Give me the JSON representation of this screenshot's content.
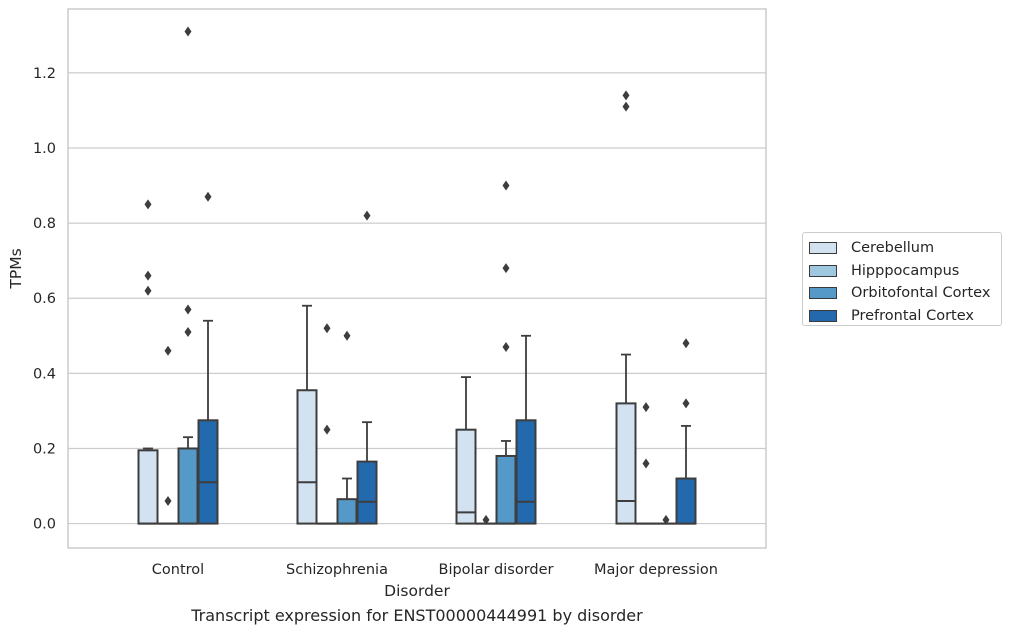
{
  "chart_data": {
    "type": "boxplot",
    "title": "",
    "caption": "Transcript expression for ENST00000444991 by disorder",
    "xlabel": "Disorder",
    "ylabel": "TPMs",
    "ylim": [
      -0.065,
      1.37
    ],
    "yticks": [
      "0.0",
      "0.2",
      "0.4",
      "0.6",
      "0.8",
      "1.0",
      "1.2"
    ],
    "grid": "horizontal",
    "legend_position": "right",
    "categories": [
      "Control",
      "Schizophrenia",
      "Bipolar disorder",
      "Major depression"
    ],
    "series": [
      {
        "name": "Cerebellum",
        "color": "#d3e2f1",
        "boxes": [
          {
            "q1": 0.0,
            "median": 0.0,
            "q3": 0.195,
            "whislo": 0.0,
            "whishi": 0.2,
            "fliers": [
              0.85,
              0.66,
              0.62
            ]
          },
          {
            "q1": 0.0,
            "median": 0.11,
            "q3": 0.355,
            "whislo": 0.0,
            "whishi": 0.58,
            "fliers": []
          },
          {
            "q1": 0.0,
            "median": 0.03,
            "q3": 0.25,
            "whislo": 0.0,
            "whishi": 0.39,
            "fliers": []
          },
          {
            "q1": 0.0,
            "median": 0.06,
            "q3": 0.32,
            "whislo": 0.0,
            "whishi": 0.45,
            "fliers": [
              1.14,
              1.11
            ]
          }
        ]
      },
      {
        "name": "Hipppocampus",
        "color": "#9ec8e0",
        "boxes": [
          {
            "q1": 0.0,
            "median": 0.0,
            "q3": 0.0,
            "whislo": 0.0,
            "whishi": 0.0,
            "fliers": [
              0.46,
              0.06
            ]
          },
          {
            "q1": 0.0,
            "median": 0.0,
            "q3": 0.0,
            "whislo": 0.0,
            "whishi": 0.0,
            "fliers": [
              0.52,
              0.25
            ]
          },
          {
            "q1": 0.0,
            "median": 0.0,
            "q3": 0.0,
            "whislo": 0.0,
            "whishi": 0.0,
            "fliers": [
              0.01
            ]
          },
          {
            "q1": 0.0,
            "median": 0.0,
            "q3": 0.0,
            "whislo": 0.0,
            "whishi": 0.0,
            "fliers": [
              0.31,
              0.16
            ]
          }
        ]
      },
      {
        "name": "Orbitofontal Cortex",
        "color": "#5499c7",
        "boxes": [
          {
            "q1": 0.0,
            "median": 0.0,
            "q3": 0.2,
            "whislo": 0.0,
            "whishi": 0.23,
            "fliers": [
              1.31,
              0.57,
              0.51
            ]
          },
          {
            "q1": 0.0,
            "median": 0.0,
            "q3": 0.065,
            "whislo": 0.0,
            "whishi": 0.12,
            "fliers": [
              0.5
            ]
          },
          {
            "q1": 0.0,
            "median": 0.0,
            "q3": 0.18,
            "whislo": 0.0,
            "whishi": 0.22,
            "fliers": [
              0.9,
              0.68,
              0.47
            ]
          },
          {
            "q1": 0.0,
            "median": 0.0,
            "q3": 0.0,
            "whislo": 0.0,
            "whishi": 0.0,
            "fliers": [
              0.01
            ]
          }
        ]
      },
      {
        "name": "Prefrontal Cortex",
        "color": "#2369ad",
        "boxes": [
          {
            "q1": 0.0,
            "median": 0.11,
            "q3": 0.275,
            "whislo": 0.0,
            "whishi": 0.54,
            "fliers": [
              0.87
            ]
          },
          {
            "q1": 0.0,
            "median": 0.058,
            "q3": 0.165,
            "whislo": 0.0,
            "whishi": 0.27,
            "fliers": [
              0.82
            ]
          },
          {
            "q1": 0.0,
            "median": 0.058,
            "q3": 0.275,
            "whislo": 0.0,
            "whishi": 0.5,
            "fliers": []
          },
          {
            "q1": 0.0,
            "median": 0.0,
            "q3": 0.12,
            "whislo": 0.0,
            "whishi": 0.26,
            "fliers": [
              0.48,
              0.32
            ]
          }
        ]
      }
    ]
  }
}
